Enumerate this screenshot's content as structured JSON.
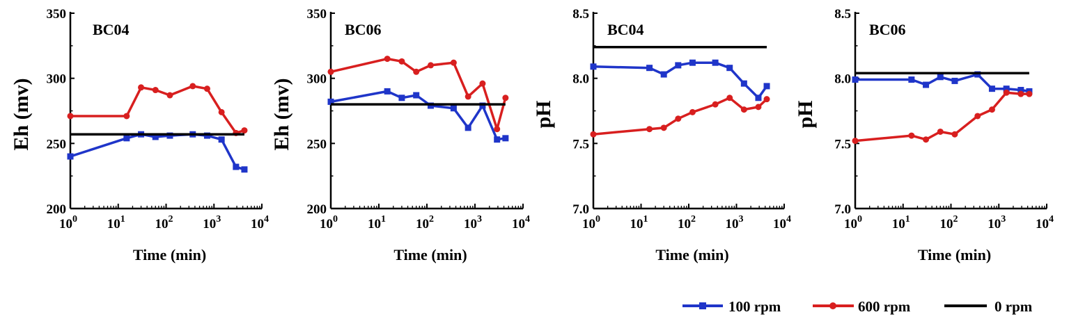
{
  "colors": {
    "rpm100": "#1f35c9",
    "rpm600": "#d81f1f",
    "rpm0": "#000000"
  },
  "legend": {
    "item_100": "100 rpm",
    "item_600": "600 rpm",
    "item_0": "0 rpm"
  },
  "chart_data": [
    {
      "type": "line",
      "title": "BC04",
      "xlabel": "Time (min)",
      "ylabel": "Eh (mv)",
      "xscale": "log",
      "xlim": [
        1,
        10000
      ],
      "ylim": [
        200,
        350
      ],
      "xticks": [
        "10^0",
        "10^1",
        "10^2",
        "10^3",
        "10^4"
      ],
      "yticks": [
        "200",
        "250",
        "300",
        "350"
      ],
      "series": [
        {
          "name": "100 rpm",
          "color": "#1f35c9",
          "marker": "square",
          "x": [
            1,
            15,
            30,
            60,
            120,
            360,
            720,
            1440,
            2880,
            4320
          ],
          "y": [
            240,
            254,
            257,
            255,
            256,
            257,
            256,
            253,
            232,
            230
          ]
        },
        {
          "name": "600 rpm",
          "color": "#d81f1f",
          "marker": "circle",
          "x": [
            1,
            15,
            30,
            60,
            120,
            360,
            720,
            1440,
            2880,
            4320
          ],
          "y": [
            271,
            271,
            293,
            291,
            287,
            294,
            292,
            274,
            258,
            260
          ]
        },
        {
          "name": "0 rpm",
          "color": "#000000",
          "marker": "none",
          "x": [
            1,
            4320
          ],
          "y": [
            257,
            257
          ]
        }
      ]
    },
    {
      "type": "line",
      "title": "BC06",
      "xlabel": "Time (min)",
      "ylabel": "Eh (mv)",
      "xscale": "log",
      "xlim": [
        1,
        10000
      ],
      "ylim": [
        200,
        350
      ],
      "xticks": [
        "10^0",
        "10^1",
        "10^2",
        "10^3",
        "10^4"
      ],
      "yticks": [
        "200",
        "250",
        "300",
        "350"
      ],
      "series": [
        {
          "name": "100 rpm",
          "color": "#1f35c9",
          "marker": "square",
          "x": [
            1,
            15,
            30,
            60,
            120,
            360,
            720,
            1440,
            2880,
            4320
          ],
          "y": [
            282,
            290,
            285,
            287,
            279,
            277,
            262,
            279,
            253,
            254
          ]
        },
        {
          "name": "600 rpm",
          "color": "#d81f1f",
          "marker": "circle",
          "x": [
            1,
            15,
            30,
            60,
            120,
            360,
            720,
            1440,
            2880,
            4320
          ],
          "y": [
            305,
            315,
            313,
            305,
            310,
            312,
            286,
            296,
            261,
            285
          ]
        },
        {
          "name": "0 rpm",
          "color": "#000000",
          "marker": "none",
          "x": [
            1,
            4320
          ],
          "y": [
            280,
            280
          ]
        }
      ]
    },
    {
      "type": "line",
      "title": "BC04",
      "xlabel": "Time (min)",
      "ylabel": "pH",
      "xscale": "log",
      "xlim": [
        1,
        10000
      ],
      "ylim": [
        7.0,
        8.5
      ],
      "xticks": [
        "10^0",
        "10^1",
        "10^2",
        "10^3",
        "10^4"
      ],
      "yticks": [
        "7.0",
        "7.5",
        "8.0",
        "8.5"
      ],
      "series": [
        {
          "name": "100 rpm",
          "color": "#1f35c9",
          "marker": "square",
          "x": [
            1,
            15,
            30,
            60,
            120,
            360,
            720,
            1440,
            2880,
            4320
          ],
          "y": [
            8.09,
            8.08,
            8.03,
            8.1,
            8.12,
            8.12,
            8.08,
            7.96,
            7.85,
            7.94
          ]
        },
        {
          "name": "600 rpm",
          "color": "#d81f1f",
          "marker": "circle",
          "x": [
            1,
            15,
            30,
            60,
            120,
            360,
            720,
            1440,
            2880,
            4320
          ],
          "y": [
            7.57,
            7.61,
            7.62,
            7.69,
            7.74,
            7.8,
            7.85,
            7.76,
            7.78,
            7.84
          ]
        },
        {
          "name": "0 rpm",
          "color": "#000000",
          "marker": "none",
          "x": [
            1,
            4320
          ],
          "y": [
            8.24,
            8.24
          ]
        }
      ]
    },
    {
      "type": "line",
      "title": "BC06",
      "xlabel": "Time (min)",
      "ylabel": "pH",
      "xscale": "log",
      "xlim": [
        1,
        10000
      ],
      "ylim": [
        7.0,
        8.5
      ],
      "xticks": [
        "10^0",
        "10^1",
        "10^2",
        "10^3",
        "10^4"
      ],
      "yticks": [
        "7.0",
        "7.5",
        "8.0",
        "8.5"
      ],
      "series": [
        {
          "name": "100 rpm",
          "color": "#1f35c9",
          "marker": "square",
          "x": [
            1,
            15,
            30,
            60,
            120,
            360,
            720,
            1440,
            2880,
            4320
          ],
          "y": [
            7.99,
            7.99,
            7.95,
            8.01,
            7.98,
            8.03,
            7.92,
            7.92,
            7.91,
            7.9
          ]
        },
        {
          "name": "600 rpm",
          "color": "#d81f1f",
          "marker": "circle",
          "x": [
            1,
            15,
            30,
            60,
            120,
            360,
            720,
            1440,
            2880,
            4320
          ],
          "y": [
            7.52,
            7.56,
            7.53,
            7.59,
            7.57,
            7.71,
            7.76,
            7.89,
            7.88,
            7.88
          ]
        },
        {
          "name": "0 rpm",
          "color": "#000000",
          "marker": "none",
          "x": [
            1,
            4320
          ],
          "y": [
            8.04,
            8.04
          ]
        }
      ]
    }
  ]
}
